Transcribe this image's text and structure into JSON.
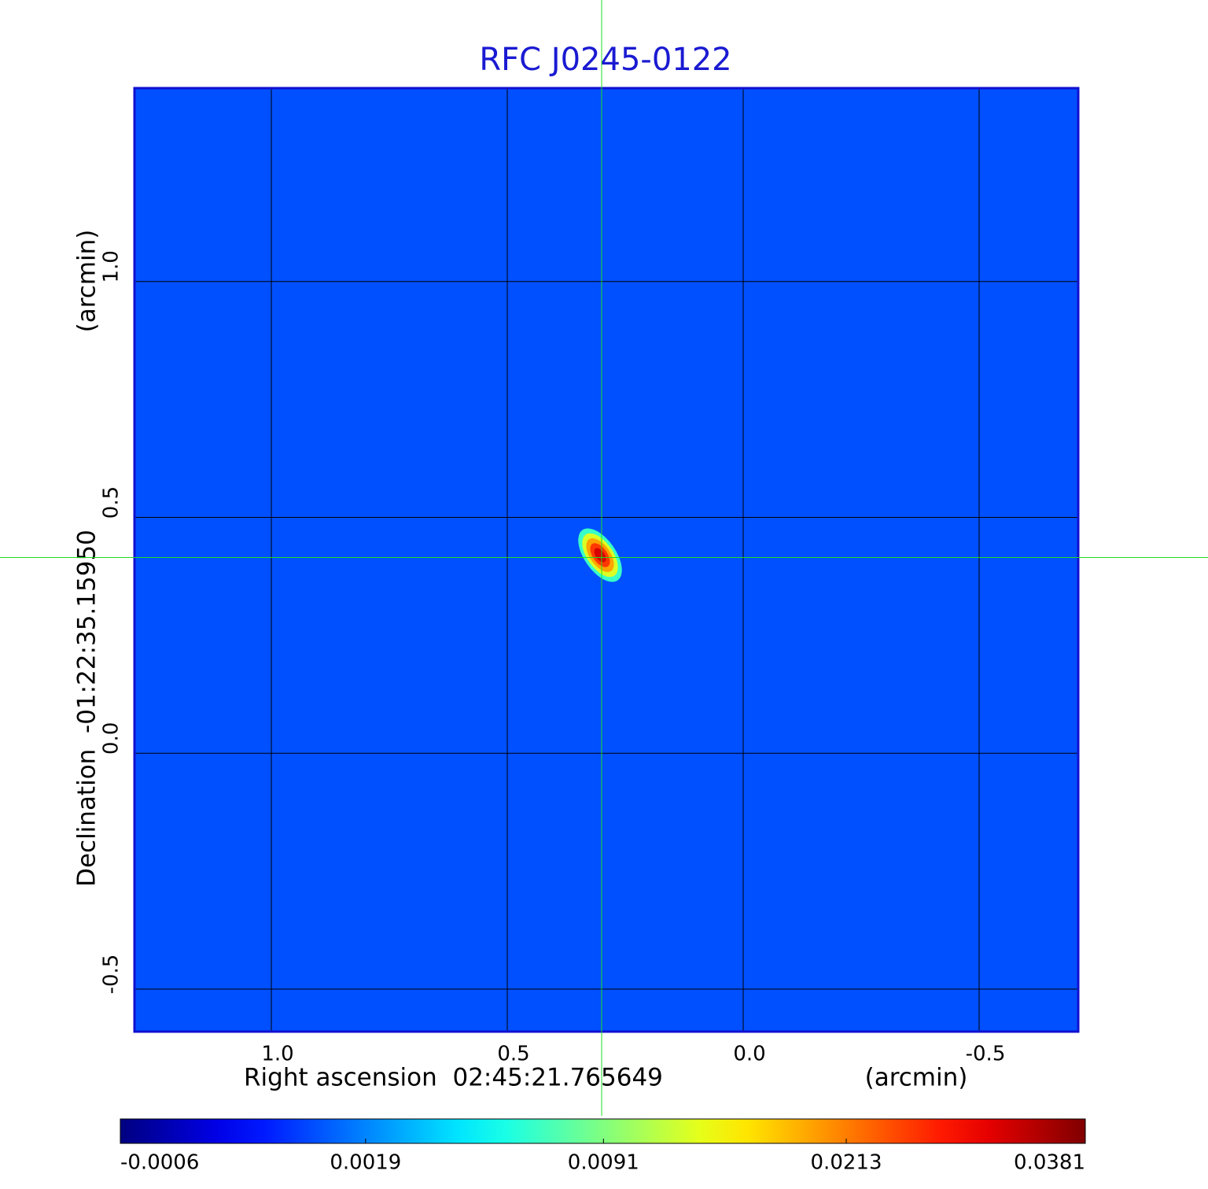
{
  "chart_data": {
    "type": "image",
    "title": "RFC J0245-0122",
    "x_label": "Right ascension  02:45:21.765649",
    "x_unit": "(arcmin)",
    "y_label": "Declination  -01:22:35.15950",
    "y_unit": "(arcmin)",
    "xlim": [
      1.29,
      -0.71
    ],
    "ylim": [
      -0.59,
      1.41
    ],
    "xticks": [
      {
        "value": 1,
        "label": "1.0"
      },
      0.5,
      {
        "value": 0,
        "label": "0.0"
      },
      -0.5
    ],
    "yticks": [
      {
        "value": 1,
        "label": "1.0"
      },
      0.5,
      {
        "value": 0,
        "label": "0.0"
      },
      -0.5
    ],
    "grid": true,
    "colormap": "jet",
    "color_scale": "sqrt",
    "clim": [
      -0.0006,
      0.0381
    ],
    "colorbar_ticks": [
      -0.0006,
      0.0019,
      0.0091,
      0.0213,
      0.0381
    ],
    "background_level": 0.001,
    "peak": {
      "x": 0.3,
      "y": 0.415,
      "value": 0.0381
    }
  }
}
